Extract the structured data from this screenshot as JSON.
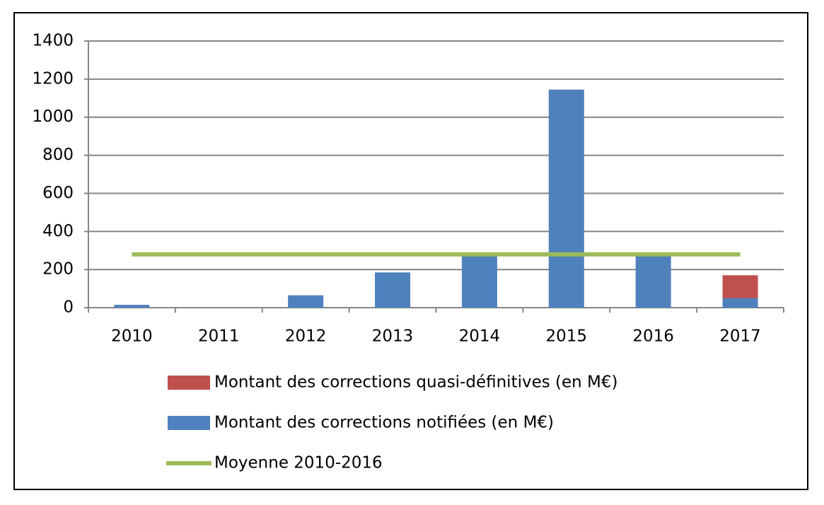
{
  "chart_data": {
    "type": "bar",
    "stacked": true,
    "categories": [
      "2010",
      "2011",
      "2012",
      "2013",
      "2014",
      "2015",
      "2016",
      "2017"
    ],
    "series": [
      {
        "name": "Montant des corrections notifiées (en M€)",
        "color": "#4f81bd",
        "values": [
          15,
          0,
          65,
          185,
          275,
          1145,
          275,
          50
        ]
      },
      {
        "name": "Montant des corrections quasi-définitives (en M€)",
        "color": "#c0504d",
        "values": [
          null,
          null,
          null,
          null,
          null,
          null,
          null,
          120
        ]
      },
      {
        "name": "Moyenne 2010-2016",
        "type": "line",
        "color": "#9bbb59",
        "values": [
          280,
          280,
          280,
          280,
          280,
          280,
          280,
          280
        ]
      }
    ],
    "ylim": [
      0,
      1400
    ],
    "yticks": [
      0,
      200,
      400,
      600,
      800,
      1000,
      1200,
      1400
    ],
    "grid": true
  }
}
